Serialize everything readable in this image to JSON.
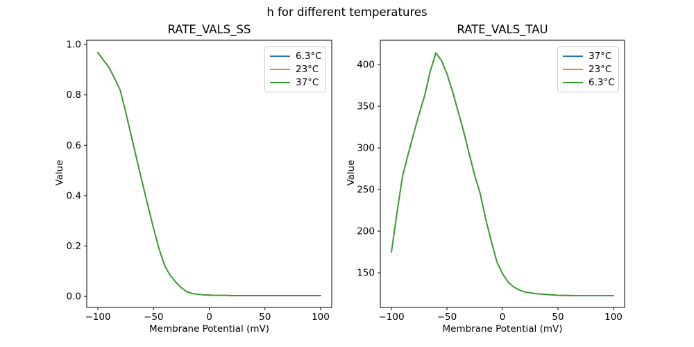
{
  "figure": {
    "title": "h for different temperatures",
    "background": "#ffffff"
  },
  "palette": {
    "blue": "#1f77b4",
    "orange": "#ff7f0e",
    "green": "#2ca02c",
    "legend_border": "#cccccc",
    "text": "#000000"
  },
  "chart_data": [
    {
      "id": "ss",
      "type": "line",
      "title": "RATE_VALS_SS",
      "xlabel": "Membrane Potential (mV)",
      "ylabel": "Value",
      "xlim": [
        -110,
        110
      ],
      "ylim": [
        -0.044,
        1.017
      ],
      "xticks": [
        -100,
        -50,
        0,
        50,
        100
      ],
      "xtick_labels": [
        "−100",
        "−50",
        "0",
        "50",
        "100"
      ],
      "yticks": [
        0.0,
        0.2,
        0.4,
        0.6,
        0.8,
        1.0
      ],
      "ytick_labels": [
        "0.0",
        "0.2",
        "0.4",
        "0.6",
        "0.8",
        "1.0"
      ],
      "grid": false,
      "series_overlap": true,
      "legend": {
        "position": "upper right",
        "entries": [
          {
            "label": "6.3°C",
            "color": "#1f77b4"
          },
          {
            "label": "23°C",
            "color": "#ff7f0e"
          },
          {
            "label": "37°C",
            "color": "#2ca02c"
          }
        ]
      },
      "x": [
        -100,
        -95,
        -90,
        -85,
        -80,
        -75,
        -70,
        -65,
        -60,
        -55,
        -50,
        -45,
        -40,
        -35,
        -30,
        -25,
        -20,
        -15,
        -10,
        -5,
        0,
        5,
        10,
        15,
        20,
        30,
        40,
        50,
        60,
        70,
        80,
        90,
        100
      ],
      "series": [
        {
          "name": "6.3°C",
          "color": "#1f77b4",
          "values": [
            0.968,
            0.938,
            0.909,
            0.866,
            0.82,
            0.731,
            0.637,
            0.543,
            0.45,
            0.358,
            0.27,
            0.188,
            0.122,
            0.083,
            0.056,
            0.034,
            0.018,
            0.011,
            0.008,
            0.006,
            0.005,
            0.004,
            0.004,
            0.004,
            0.003,
            0.003,
            0.003,
            0.003,
            0.003,
            0.003,
            0.003,
            0.003,
            0.003
          ]
        },
        {
          "name": "23°C",
          "color": "#ff7f0e",
          "values": [
            0.968,
            0.938,
            0.909,
            0.866,
            0.82,
            0.731,
            0.637,
            0.543,
            0.45,
            0.358,
            0.27,
            0.188,
            0.122,
            0.083,
            0.056,
            0.034,
            0.018,
            0.011,
            0.008,
            0.006,
            0.005,
            0.004,
            0.004,
            0.004,
            0.003,
            0.003,
            0.003,
            0.003,
            0.003,
            0.003,
            0.003,
            0.003,
            0.003
          ]
        },
        {
          "name": "37°C",
          "color": "#2ca02c",
          "values": [
            0.968,
            0.938,
            0.909,
            0.866,
            0.82,
            0.731,
            0.637,
            0.543,
            0.45,
            0.358,
            0.27,
            0.188,
            0.122,
            0.083,
            0.056,
            0.034,
            0.018,
            0.011,
            0.008,
            0.006,
            0.005,
            0.004,
            0.004,
            0.004,
            0.003,
            0.003,
            0.003,
            0.003,
            0.003,
            0.003,
            0.003,
            0.003,
            0.003
          ]
        }
      ]
    },
    {
      "id": "tau",
      "type": "line",
      "title": "RATE_VALS_TAU",
      "xlabel": "Membrane Potential (mV)",
      "ylabel": "Value",
      "xlim": [
        -110,
        110
      ],
      "ylim": [
        108.4,
        429.2
      ],
      "xticks": [
        -100,
        -50,
        0,
        50,
        100
      ],
      "xtick_labels": [
        "−100",
        "−50",
        "0",
        "50",
        "100"
      ],
      "yticks": [
        150,
        200,
        250,
        300,
        350,
        400
      ],
      "ytick_labels": [
        "150",
        "200",
        "250",
        "300",
        "350",
        "400"
      ],
      "grid": false,
      "series_overlap": true,
      "legend": {
        "position": "upper right",
        "entries": [
          {
            "label": "37°C",
            "color": "#1f77b4"
          },
          {
            "label": "23°C",
            "color": "#ff7f0e"
          },
          {
            "label": "6.3°C",
            "color": "#2ca02c"
          }
        ]
      },
      "x": [
        -100,
        -95,
        -90,
        -85,
        -80,
        -75,
        -70,
        -65,
        -60,
        -55,
        -50,
        -45,
        -40,
        -35,
        -30,
        -25,
        -20,
        -15,
        -10,
        -5,
        0,
        5,
        10,
        15,
        20,
        30,
        40,
        50,
        60,
        70,
        80,
        90,
        100
      ],
      "series": [
        {
          "name": "37°C",
          "color": "#1f77b4",
          "values": [
            175,
            222,
            266,
            292,
            317,
            341,
            363,
            392,
            414,
            405,
            389,
            368,
            344,
            320,
            293,
            267,
            245,
            214,
            188,
            163,
            149,
            139,
            133,
            129.5,
            127,
            125,
            124,
            123,
            122.7,
            122.5,
            122.5,
            122.5,
            122.5
          ]
        },
        {
          "name": "23°C",
          "color": "#ff7f0e",
          "values": [
            175,
            222,
            266,
            292,
            317,
            341,
            363,
            392,
            414,
            405,
            389,
            368,
            344,
            320,
            293,
            267,
            245,
            214,
            188,
            163,
            149,
            139,
            133,
            129.5,
            127,
            125,
            124,
            123,
            122.7,
            122.5,
            122.5,
            122.5,
            122.5
          ]
        },
        {
          "name": "6.3°C",
          "color": "#2ca02c",
          "values": [
            175,
            222,
            266,
            292,
            317,
            341,
            363,
            392,
            414,
            405,
            389,
            368,
            344,
            320,
            293,
            267,
            245,
            214,
            188,
            163,
            149,
            139,
            133,
            129.5,
            127,
            125,
            124,
            123,
            122.7,
            122.5,
            122.5,
            122.5,
            122.5
          ]
        }
      ]
    }
  ]
}
